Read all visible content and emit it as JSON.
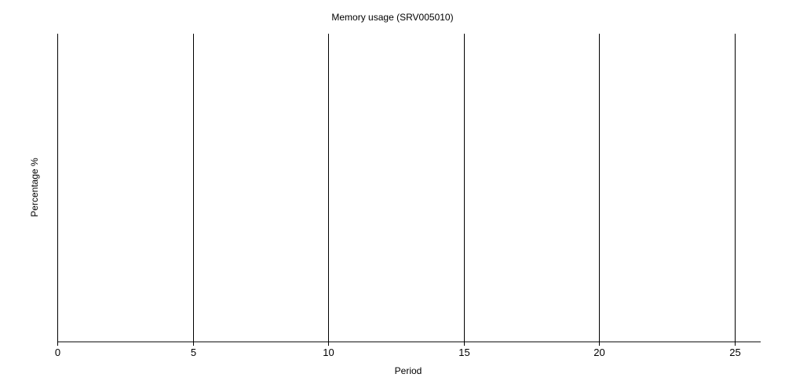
{
  "chart_data": {
    "type": "line",
    "title": "Memory usage (SRV005010)",
    "xlabel": "Period",
    "ylabel": "Percentage %",
    "xlim": [
      0,
      26
    ],
    "x_ticks": [
      0,
      5,
      10,
      15,
      20,
      25
    ],
    "x_tick_labels": [
      "0",
      "5",
      "10",
      "15",
      "20",
      "25"
    ],
    "grid": "vertical",
    "legend": "none",
    "series": []
  },
  "colors": {
    "background": "#ffffff",
    "axis": "#000000",
    "grid": "#000000",
    "text": "#000000"
  }
}
